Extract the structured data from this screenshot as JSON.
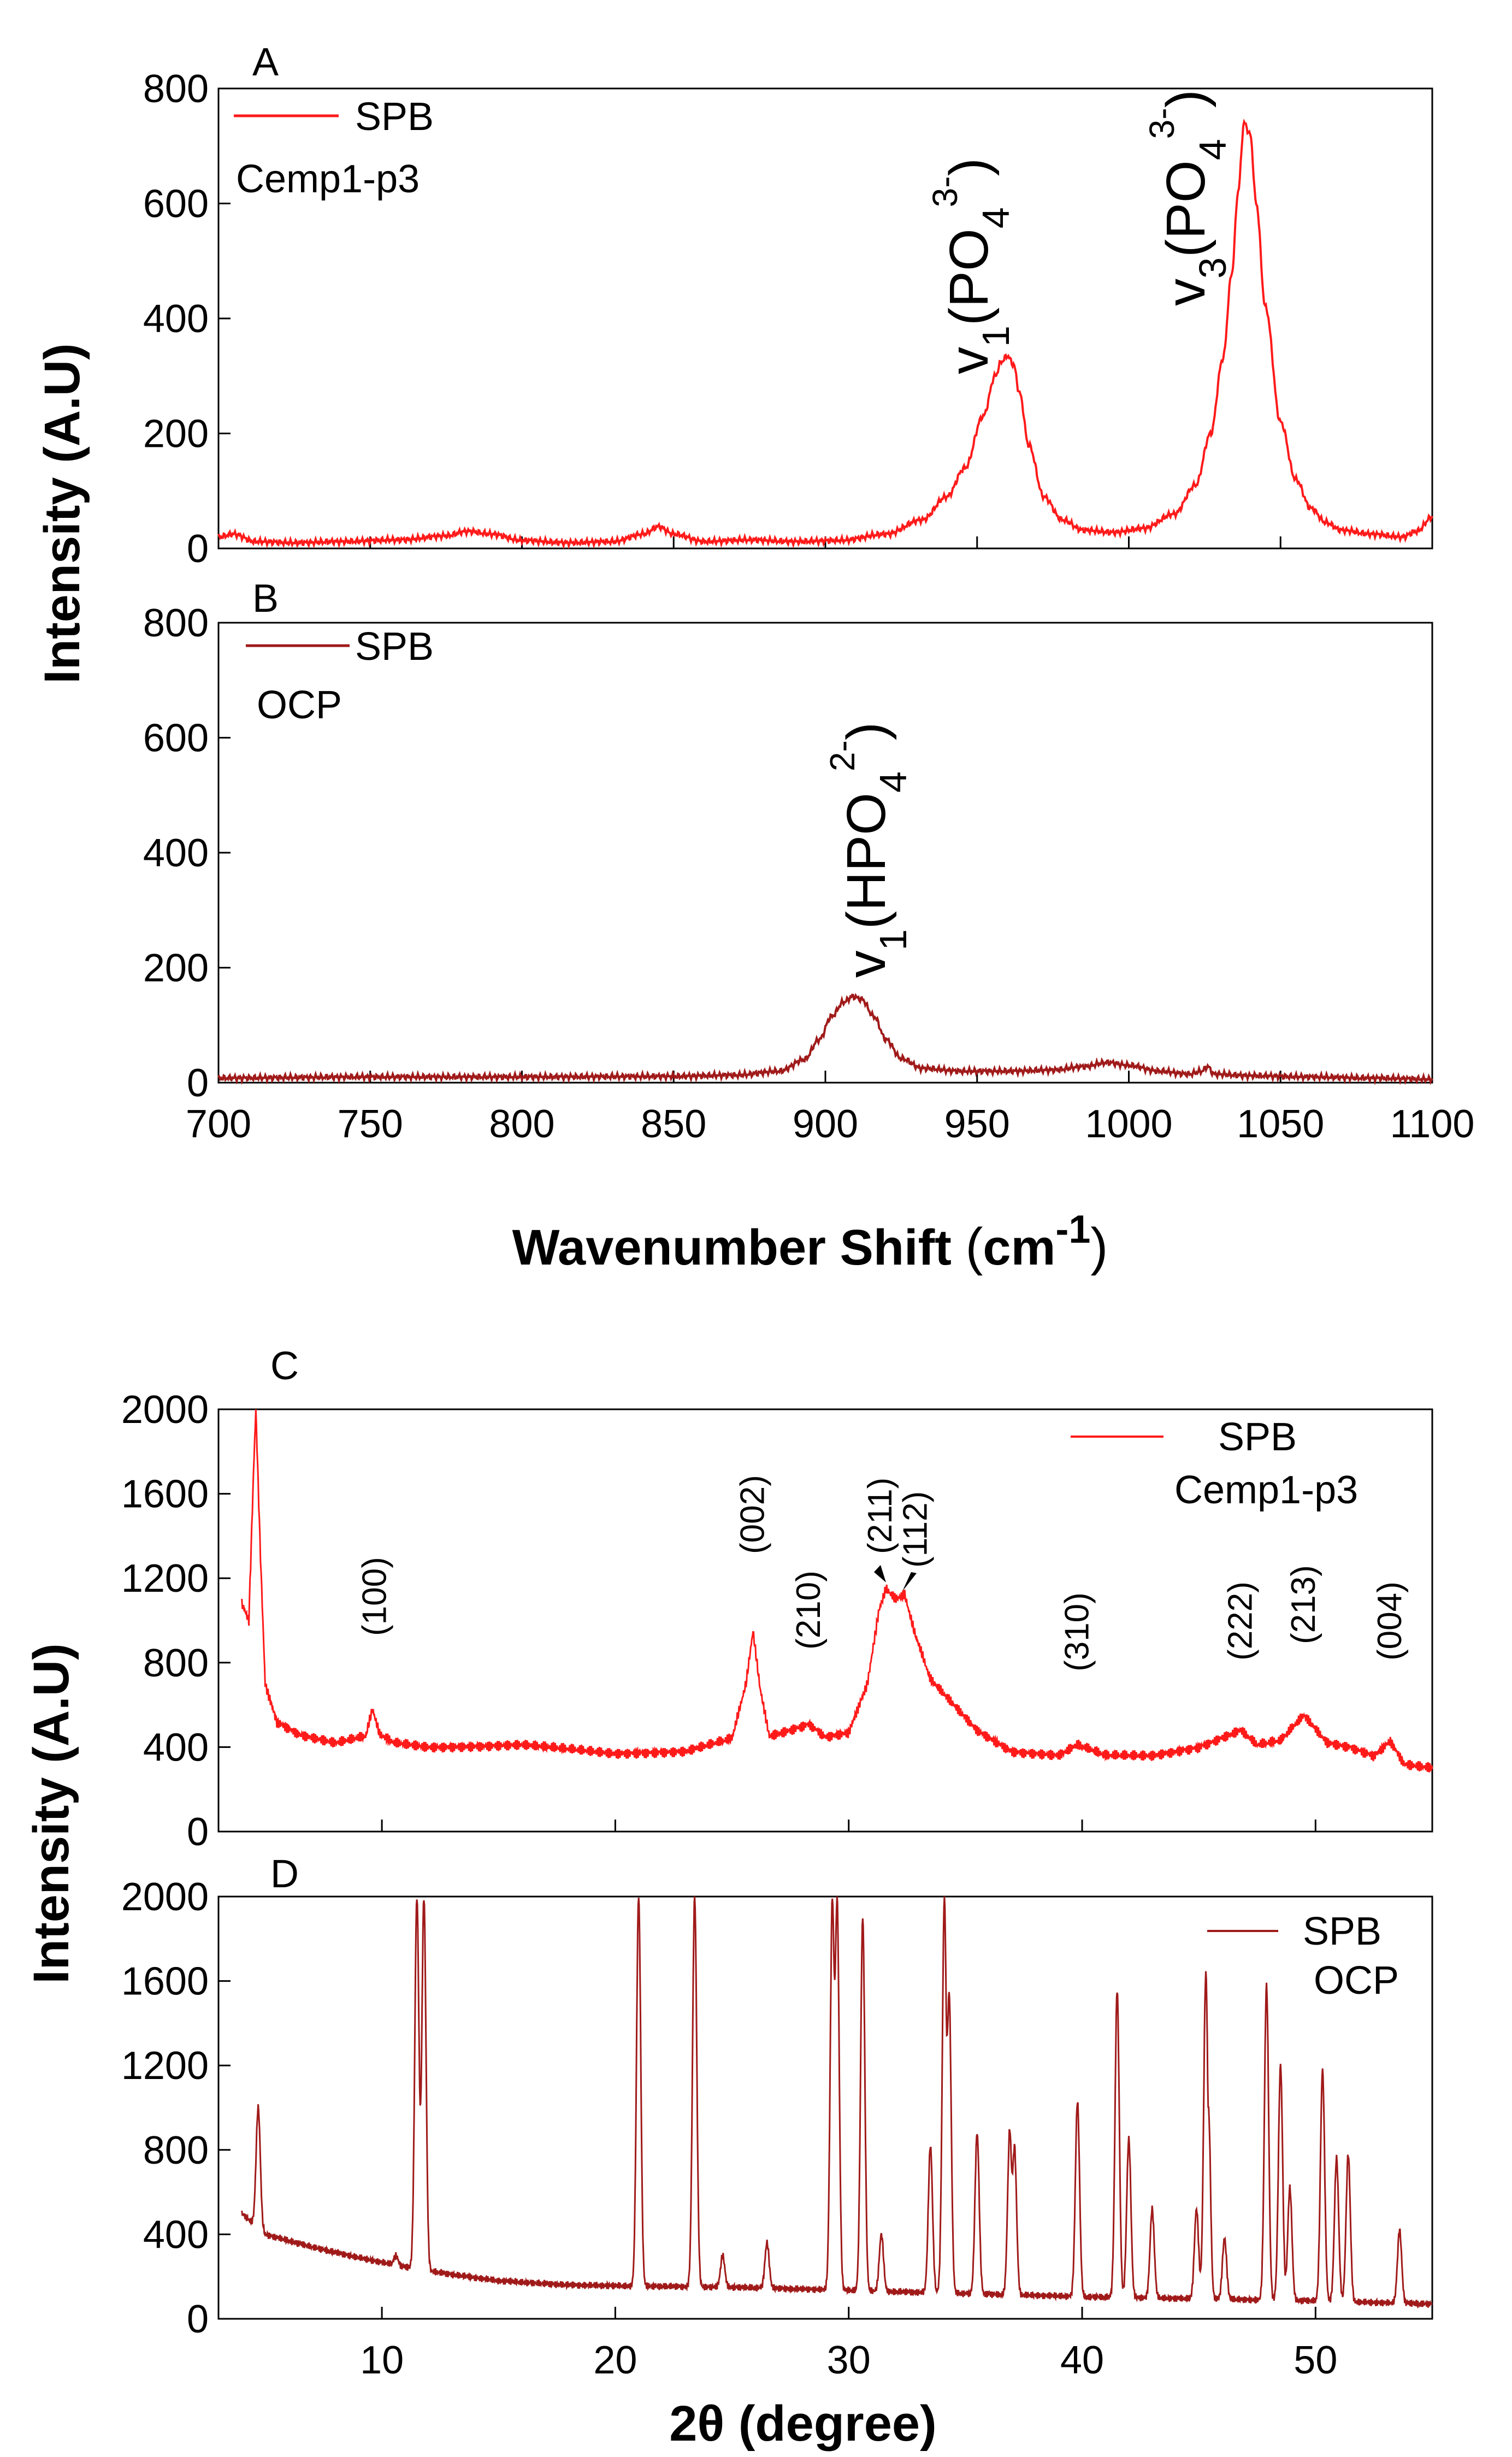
{
  "raman": {
    "xlabel": "Wavenumber Shift",
    "xlabel_unit": "cm",
    "xlabel_unit_exp": "-1",
    "ylabel": "Intensity (A.U)",
    "panels": [
      {
        "letter": "A",
        "legend": {
          "series": "SPB",
          "sample": "Cemp1-p3"
        },
        "color": "#ff1a1a",
        "peaks": [
          {
            "mode": "v",
            "sub": "1",
            "species": "(PO",
            "ion_sub": "4",
            "charge": "3-",
            "wavenumber": 960
          },
          {
            "mode": "v",
            "sub": "3",
            "species": "(PO",
            "ion_sub": "4",
            "charge": "3-",
            "wavenumber": 1038
          }
        ]
      },
      {
        "letter": "B",
        "legend": {
          "series": "SPB",
          "sample": "OCP"
        },
        "color": "#a01a1a",
        "peaks": [
          {
            "mode": "v",
            "sub": "1",
            "species": "(HPO",
            "ion_sub": "4",
            "charge": "2-",
            "wavenumber": 910
          }
        ]
      }
    ]
  },
  "xrd": {
    "xlabel": "2θ (degree)",
    "ylabel": "Intensity (A.U)",
    "panels": [
      {
        "letter": "C",
        "legend": {
          "series": "SPB",
          "sample": "Cemp1-p3"
        },
        "color": "#ff1a1a",
        "reflections": [
          {
            "hkl": "(100)",
            "two_theta": 9.7
          },
          {
            "hkl": "(002)",
            "two_theta": 25.9
          },
          {
            "hkl": "(210)",
            "two_theta": 28.3
          },
          {
            "hkl": "(211)",
            "two_theta": 31.6
          },
          {
            "hkl": "(112)",
            "two_theta": 32.4
          },
          {
            "hkl": "(310)",
            "two_theta": 39.8
          },
          {
            "hkl": "(222)",
            "two_theta": 46.8
          },
          {
            "hkl": "(213)",
            "two_theta": 49.5
          },
          {
            "hkl": "(004)",
            "two_theta": 53.2
          }
        ]
      },
      {
        "letter": "D",
        "legend": {
          "series": "SPB",
          "sample": "OCP"
        },
        "color": "#a01a1a"
      }
    ]
  },
  "chart_data": [
    {
      "type": "line",
      "panel": "A",
      "title": "",
      "xlabel": "Wavenumber Shift (cm-1)",
      "ylabel": "Intensity (A.U)",
      "xlim": [
        700,
        1100
      ],
      "ylim": [
        0,
        800
      ],
      "xticks": [
        700,
        750,
        800,
        850,
        900,
        950,
        1000,
        1050,
        1100
      ],
      "yticks": [
        0,
        200,
        400,
        600,
        800
      ],
      "series": [
        {
          "name": "SPB Cemp1-p3",
          "color": "#ff1a1a",
          "x": [
            700,
            705,
            712,
            725,
            740,
            760,
            775,
            782,
            790,
            800,
            815,
            830,
            840,
            845,
            850,
            860,
            875,
            890,
            905,
            920,
            932,
            940,
            946,
            952,
            956,
            958,
            960,
            962,
            964,
            967,
            972,
            978,
            985,
            995,
            1005,
            1015,
            1022,
            1027,
            1031,
            1034,
            1036,
            1038,
            1040,
            1042,
            1045,
            1050,
            1055,
            1060,
            1065,
            1070,
            1080,
            1090,
            1095,
            1100
          ],
          "y": [
            20,
            25,
            12,
            10,
            12,
            15,
            22,
            30,
            25,
            14,
            10,
            12,
            25,
            38,
            25,
            12,
            15,
            12,
            14,
            25,
            50,
            90,
            140,
            230,
            300,
            325,
            335,
            320,
            270,
            180,
            90,
            50,
            32,
            28,
            35,
            60,
            110,
            200,
            330,
            480,
            620,
            740,
            720,
            600,
            420,
            220,
            120,
            70,
            45,
            32,
            25,
            20,
            30,
            55
          ]
        }
      ]
    },
    {
      "type": "line",
      "panel": "B",
      "title": "",
      "xlabel": "Wavenumber Shift (cm-1)",
      "ylabel": "Intensity (A.U)",
      "xlim": [
        700,
        1100
      ],
      "ylim": [
        0,
        800
      ],
      "xticks": [
        700,
        750,
        800,
        850,
        900,
        950,
        1000,
        1050,
        1100
      ],
      "yticks": [
        0,
        200,
        400,
        600,
        800
      ],
      "series": [
        {
          "name": "SPB OCP",
          "color": "#a01a1a",
          "x": [
            700,
            750,
            800,
            850,
            870,
            885,
            893,
            898,
            902,
            906,
            909,
            912,
            916,
            920,
            925,
            932,
            945,
            960,
            975,
            985,
            993,
            1000,
            1010,
            1020,
            1024,
            1026,
            1028,
            1040,
            1060,
            1080,
            1100
          ],
          "y": [
            8,
            10,
            10,
            11,
            13,
            20,
            40,
            75,
            115,
            140,
            150,
            145,
            115,
            75,
            42,
            25,
            20,
            20,
            22,
            28,
            35,
            30,
            20,
            15,
            20,
            28,
            15,
            12,
            10,
            8,
            6
          ]
        }
      ]
    },
    {
      "type": "line",
      "panel": "C",
      "title": "",
      "xlabel": "2θ (degree)",
      "ylabel": "Intensity (A.U)",
      "xlim": [
        3,
        55
      ],
      "ylim": [
        0,
        2000
      ],
      "xticks": [
        10,
        20,
        30,
        40,
        50
      ],
      "yticks": [
        0,
        400,
        800,
        1200,
        1600,
        2000
      ],
      "series": [
        {
          "name": "SPB Cemp1-p3",
          "color": "#ff1a1a",
          "x": [
            4.0,
            4.3,
            4.5,
            4.6,
            4.8,
            5.0,
            5.5,
            6.5,
            8.0,
            9.3,
            9.6,
            9.9,
            10.5,
            12.0,
            16.0,
            20.0,
            23.0,
            25.0,
            25.6,
            25.9,
            26.2,
            26.6,
            27.5,
            28.3,
            29.0,
            30.0,
            30.8,
            31.3,
            31.6,
            32.0,
            32.4,
            32.8,
            33.5,
            34.5,
            35.5,
            37.0,
            39.0,
            39.8,
            41.0,
            43.0,
            45.0,
            46.8,
            47.5,
            48.5,
            49.5,
            50.5,
            51.5,
            52.5,
            53.2,
            53.8,
            55.0
          ],
          "y": [
            1080,
            1000,
            1700,
            2000,
            1300,
            700,
            520,
            460,
            420,
            450,
            580,
            460,
            420,
            400,
            410,
            370,
            380,
            440,
            700,
            950,
            680,
            450,
            480,
            510,
            450,
            470,
            700,
            1050,
            1150,
            1100,
            1120,
            950,
            720,
            600,
            480,
            380,
            360,
            410,
            360,
            360,
            400,
            480,
            410,
            430,
            550,
            420,
            400,
            360,
            430,
            320,
            300
          ]
        }
      ]
    },
    {
      "type": "line",
      "panel": "D",
      "title": "",
      "xlabel": "2θ (degree)",
      "ylabel": "Intensity (A.U)",
      "xlim": [
        3,
        55
      ],
      "ylim": [
        0,
        2000
      ],
      "xticks": [
        10,
        20,
        30,
        40,
        50
      ],
      "yticks": [
        0,
        400,
        800,
        1200,
        1600,
        2000
      ],
      "series": [
        {
          "name": "SPB OCP",
          "color": "#a01a1a",
          "baseline_x": [
            4,
            5,
            7,
            9,
            11,
            13,
            15,
            18,
            21,
            25,
            30,
            35,
            40,
            45,
            50,
            55
          ],
          "baseline_y": [
            500,
            400,
            340,
            290,
            245,
            210,
            180,
            160,
            155,
            150,
            135,
            120,
            105,
            95,
            85,
            70
          ],
          "peaks_x": [
            4.7,
            10.6,
            11.5,
            11.8,
            21.0,
            23.4,
            24.6,
            26.5,
            29.3,
            29.5,
            30.6,
            31.4,
            33.5,
            34.1,
            34.3,
            35.5,
            36.9,
            37.1,
            39.8,
            41.5,
            42.0,
            43.0,
            44.9,
            45.3,
            45.4,
            46.1,
            47.9,
            48.5,
            48.9,
            50.3,
            50.9,
            51.4,
            53.6
          ],
          "peaks_y": [
            1000,
            300,
            2000,
            2000,
            2000,
            2000,
            300,
            360,
            2000,
            2000,
            1900,
            400,
            820,
            2000,
            1550,
            880,
            900,
            820,
            1030,
            1560,
            850,
            520,
            520,
            1640,
            1000,
            380,
            1580,
            1200,
            620,
            1180,
            760,
            780,
            420
          ]
        }
      ]
    }
  ]
}
